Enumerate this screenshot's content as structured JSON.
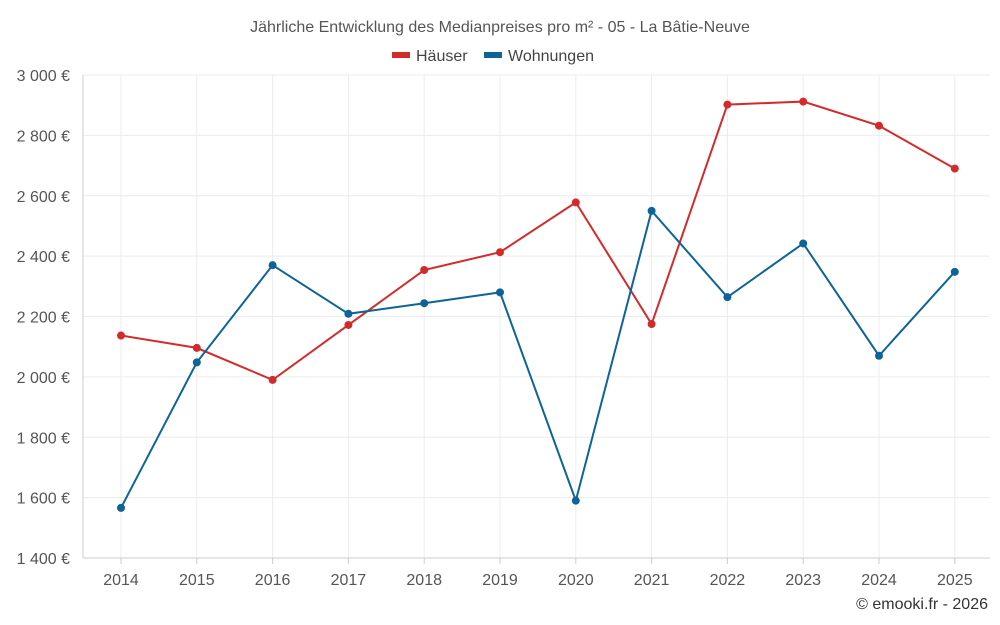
{
  "chart_data": {
    "type": "line",
    "title": "Jährliche Entwicklung des Medianpreises pro m² - 05 - La Bâtie-Neuve",
    "x": [
      "2014",
      "2015",
      "2016",
      "2017",
      "2018",
      "2019",
      "2020",
      "2021",
      "2022",
      "2023",
      "2024",
      "2025"
    ],
    "ylim": [
      1400,
      3000
    ],
    "yticks": [
      1400,
      1600,
      1800,
      2000,
      2200,
      2400,
      2600,
      2800,
      3000
    ],
    "ytick_labels": [
      "1 400 €",
      "1 600 €",
      "1 800 €",
      "2 000 €",
      "2 200 €",
      "2 400 €",
      "2 600 €",
      "2 800 €",
      "3 000 €"
    ],
    "grid": true,
    "legend_position": "top-center",
    "series": [
      {
        "name": "Häuser",
        "color": "#d32b2b",
        "values": [
          2137,
          2096,
          1990,
          2172,
          2354,
          2413,
          2578,
          2175,
          2902,
          2912,
          2832,
          2690
        ]
      },
      {
        "name": "Wohnungen",
        "color": "#0e6497",
        "values": [
          1566,
          2048,
          2370,
          2209,
          2244,
          2280,
          1590,
          2550,
          2264,
          2442,
          2070,
          2348
        ]
      }
    ],
    "credit": "© emooki.fr - 2026"
  }
}
